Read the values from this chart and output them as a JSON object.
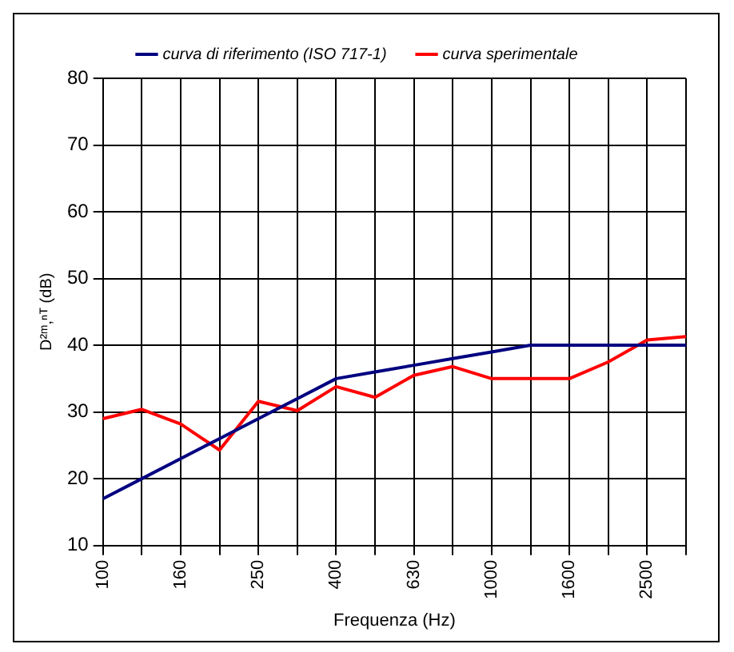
{
  "chart_data": {
    "type": "line",
    "xlabel": "Frequenza (Hz)",
    "ylabel": "D²ᵐ,ⁿᵀ (dB)",
    "categories": [
      "100",
      null,
      "160",
      null,
      "250",
      null,
      "400",
      null,
      "630",
      null,
      "1000",
      null,
      "1600",
      null,
      "2500",
      null
    ],
    "series": [
      {
        "name": "curva di riferimento (ISO 717-1)",
        "color": "#000080",
        "values": [
          17,
          20,
          23,
          26,
          29,
          32,
          35,
          36,
          37,
          38,
          39,
          40,
          40,
          40,
          40,
          40
        ]
      },
      {
        "name": "curva sperimentale",
        "color": "#ff0000",
        "values": [
          29,
          30.4,
          28.2,
          24.3,
          31.6,
          30.2,
          33.8,
          32.2,
          35.5,
          36.8,
          35,
          35,
          35,
          37.5,
          40.8,
          41.3
        ]
      }
    ],
    "ylim": [
      10,
      80
    ],
    "yticks": [
      10,
      20,
      30,
      40,
      50,
      60,
      70,
      80
    ],
    "grid": true,
    "legend": "top",
    "marker": "none",
    "line_style": "solid"
  }
}
